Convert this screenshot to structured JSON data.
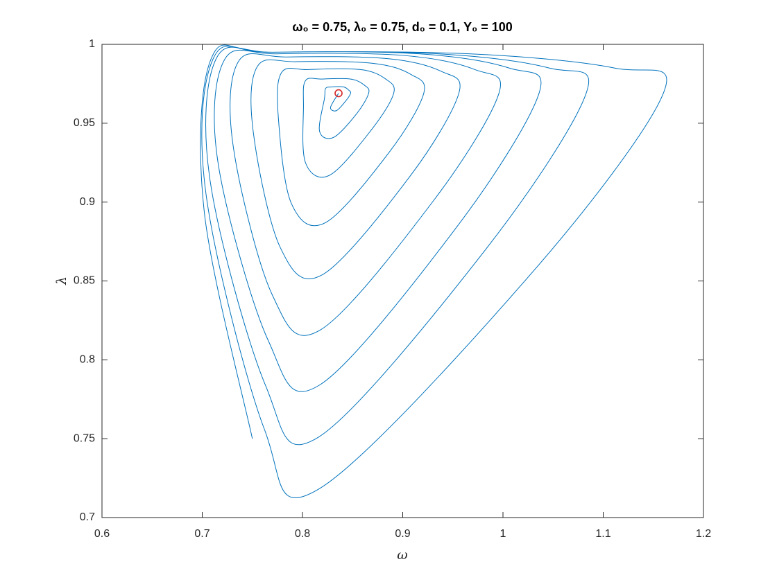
{
  "chart_data": {
    "type": "line",
    "title": "ω₀ = 0.75, λ₀ = 0.75, d₀ = 0.1, Y₀ = 100",
    "xlabel": "ω",
    "ylabel": "λ",
    "xlim": [
      0.6,
      1.2
    ],
    "ylim": [
      0.7,
      1
    ],
    "xticks": [
      0.6,
      0.7,
      0.8,
      0.9,
      1,
      1.1,
      1.2
    ],
    "yticks": [
      0.7,
      0.75,
      0.8,
      0.85,
      0.9,
      0.95,
      1
    ],
    "box": true,
    "series": [
      {
        "color": "#0072bd",
        "x": [
          0.75,
          0.702,
          0.709,
          0.769,
          0.966,
          1.111,
          1.16,
          1.03,
          0.816,
          0.762,
          0.704,
          0.711,
          0.77,
          0.935,
          1.046,
          1.083,
          0.984,
          0.816,
          0.763,
          0.708,
          0.714,
          0.772,
          0.916,
          1.006,
          1.036,
          0.956,
          0.817,
          0.766,
          0.716,
          0.722,
          0.776,
          0.9,
          0.972,
          0.996,
          0.932,
          0.818,
          0.77,
          0.731,
          0.736,
          0.784,
          0.884,
          0.938,
          0.956,
          0.908,
          0.82,
          0.778,
          0.751,
          0.755,
          0.794,
          0.87,
          0.908,
          0.921,
          0.887,
          0.823,
          0.789,
          0.776,
          0.779,
          0.806,
          0.858,
          0.883,
          0.891,
          0.869,
          0.827,
          0.803,
          0.801,
          0.803,
          0.819,
          0.848,
          0.862,
          0.866,
          0.854,
          0.831,
          0.817,
          0.822,
          0.823,
          0.829,
          0.841,
          0.846,
          0.848,
          0.843,
          0.834,
          0.828,
          0.836
        ],
        "y": [
          0.75,
          0.894,
          0.991,
          0.995,
          0.994,
          0.985,
          0.969,
          0.856,
          0.718,
          0.756,
          0.904,
          0.991,
          0.995,
          0.994,
          0.985,
          0.969,
          0.871,
          0.751,
          0.784,
          0.913,
          0.991,
          0.995,
          0.994,
          0.985,
          0.969,
          0.886,
          0.784,
          0.812,
          0.924,
          0.99,
          0.994,
          0.993,
          0.984,
          0.969,
          0.902,
          0.819,
          0.841,
          0.935,
          0.989,
          0.992,
          0.991,
          0.983,
          0.969,
          0.917,
          0.854,
          0.871,
          0.944,
          0.986,
          0.989,
          0.988,
          0.981,
          0.969,
          0.932,
          0.887,
          0.899,
          0.953,
          0.982,
          0.984,
          0.984,
          0.978,
          0.969,
          0.946,
          0.917,
          0.925,
          0.961,
          0.977,
          0.978,
          0.978,
          0.974,
          0.969,
          0.956,
          0.941,
          0.945,
          0.966,
          0.972,
          0.973,
          0.973,
          0.971,
          0.969,
          0.964,
          0.958,
          0.96,
          0.969
        ]
      },
      {
        "color": "#d62728",
        "marker": "o",
        "x": [
          0.836
        ],
        "y": [
          0.969
        ]
      }
    ]
  }
}
